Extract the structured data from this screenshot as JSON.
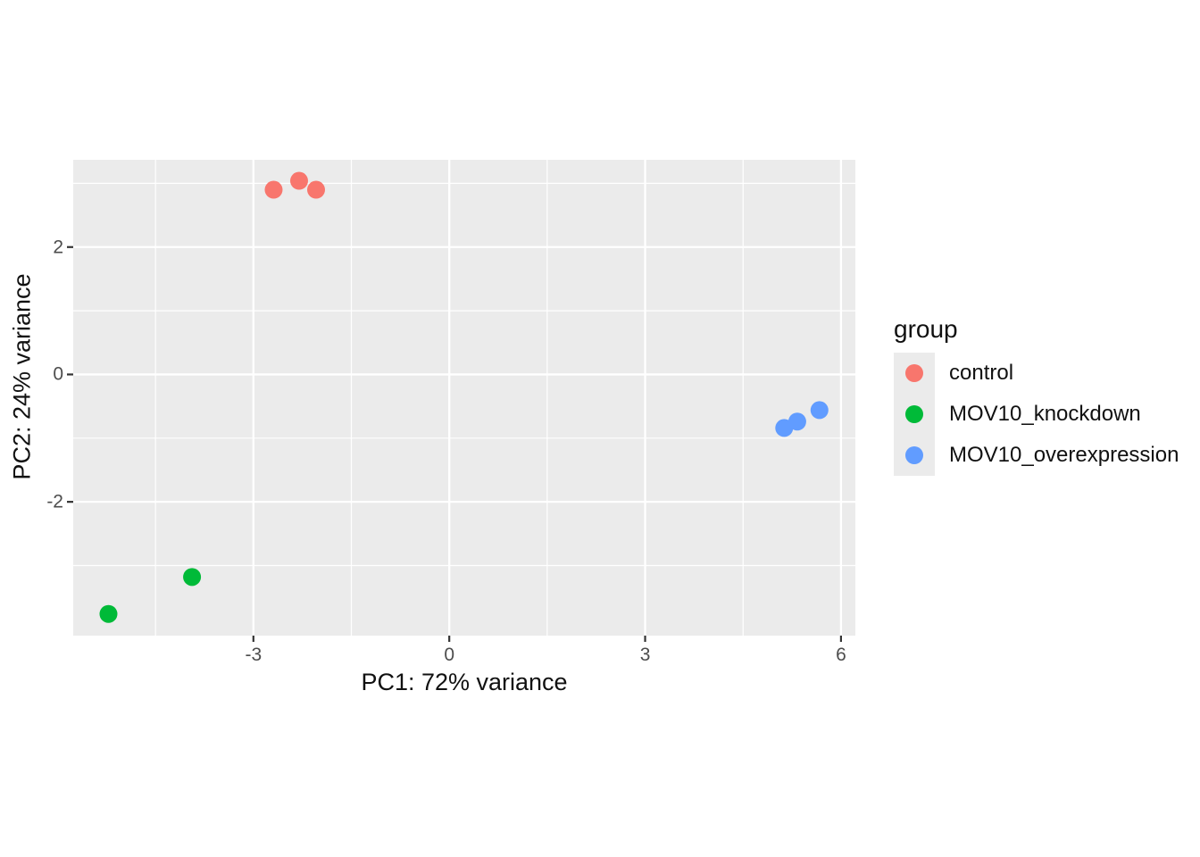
{
  "chart_data": {
    "type": "scatter",
    "title": "",
    "xlabel": "PC1: 72% variance",
    "ylabel": "PC2: 24% variance",
    "xlim": [
      -5.76,
      6.22
    ],
    "ylim": [
      -4.1,
      3.37
    ],
    "x_major_ticks": [
      -3,
      0,
      3,
      6
    ],
    "x_minor_ticks": [
      -4.5,
      -1.5,
      1.5,
      4.5
    ],
    "y_major_ticks": [
      2,
      0,
      -2
    ],
    "y_minor_ticks": [
      3,
      1,
      -1,
      -3
    ],
    "grid": true,
    "legend_position": "right",
    "colors": {
      "panel_background": "#ebebeb",
      "gridline": "#ffffff",
      "tick_mark": "#333333",
      "tick_label": "#4d4d4d",
      "axis_title": "#111111",
      "legend_key_background": "#ebebeb"
    },
    "point_radius_px": 10,
    "legend": {
      "title": "group"
    },
    "series": [
      {
        "name": "control",
        "color": "#F8766D",
        "points": [
          [
            -2.69,
            2.9
          ],
          [
            -2.3,
            3.04
          ],
          [
            -2.04,
            2.9
          ]
        ]
      },
      {
        "name": "MOV10_knockdown",
        "color": "#00BA38",
        "points": [
          [
            -5.22,
            -3.76
          ],
          [
            -3.94,
            -3.18
          ]
        ]
      },
      {
        "name": "MOV10_overexpression",
        "color": "#619CFF",
        "points": [
          [
            5.13,
            -0.84
          ],
          [
            5.33,
            -0.74
          ],
          [
            5.67,
            -0.56
          ]
        ]
      }
    ]
  }
}
